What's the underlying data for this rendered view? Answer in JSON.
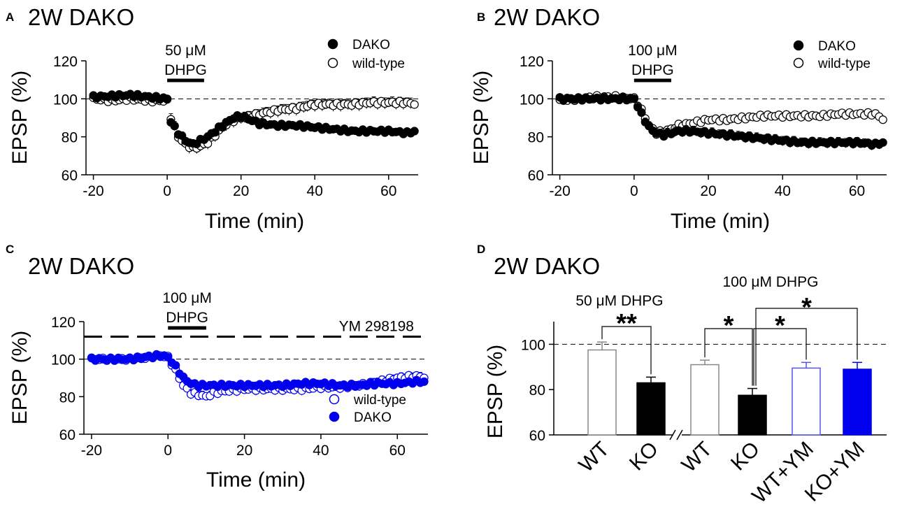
{
  "figure": {
    "panels": [
      {
        "label": "A",
        "title": "2W DAKO"
      },
      {
        "label": "B",
        "title": "2W DAKO"
      },
      {
        "label": "C",
        "title": "2W DAKO"
      },
      {
        "label": "D",
        "title": "2W DAKO"
      }
    ]
  },
  "colors": {
    "black": "#000000",
    "blue": "#0000ee",
    "white": "#ffffff"
  },
  "chart_data": [
    {
      "panel": "A",
      "type": "scatter",
      "title": "2W DAKO",
      "xlabel": "Time (min)",
      "ylabel": "EPSP (%)",
      "xlim": [
        -22,
        68
      ],
      "ylim": [
        60,
        120
      ],
      "xticks": [
        "-20",
        "0",
        "20",
        "40",
        "60"
      ],
      "yticks": [
        "60",
        "80",
        "100",
        "120"
      ],
      "drug": {
        "line1": "50 μM",
        "line2": "DHPG",
        "start": 0,
        "end": 10
      },
      "baseline": 100,
      "legend": [
        {
          "name": "DAKO",
          "marker": "filled"
        },
        {
          "name": "wild-type",
          "marker": "open"
        }
      ],
      "series": [
        {
          "name": "DAKO",
          "marker": "filled",
          "color": "#000000",
          "points": [
            [
              -20,
              101
            ],
            [
              -10,
              102
            ],
            [
              0,
              100
            ],
            [
              1,
              88
            ],
            [
              3,
              82
            ],
            [
              5,
              78
            ],
            [
              7,
              76
            ],
            [
              9,
              78
            ],
            [
              11,
              80
            ],
            [
              13,
              83
            ],
            [
              15,
              86
            ],
            [
              18,
              90
            ],
            [
              20,
              91
            ],
            [
              25,
              87
            ],
            [
              30,
              86
            ],
            [
              35,
              86
            ],
            [
              40,
              85
            ],
            [
              45,
              84
            ],
            [
              50,
              83
            ],
            [
              55,
              83
            ],
            [
              60,
              83
            ],
            [
              65,
              82
            ],
            [
              67,
              83
            ]
          ],
          "err": 2
        },
        {
          "name": "wild-type",
          "marker": "open",
          "color": "#000000",
          "points": [
            [
              -20,
              100
            ],
            [
              -15,
              99
            ],
            [
              -10,
              100
            ],
            [
              -5,
              99
            ],
            [
              0,
              99
            ],
            [
              1,
              90
            ],
            [
              3,
              80
            ],
            [
              5,
              76
            ],
            [
              7,
              74
            ],
            [
              9,
              75
            ],
            [
              11,
              77
            ],
            [
              13,
              81
            ],
            [
              15,
              85
            ],
            [
              17,
              88
            ],
            [
              20,
              90
            ],
            [
              23,
              91
            ],
            [
              25,
              92
            ],
            [
              30,
              94
            ],
            [
              35,
              95
            ],
            [
              40,
              97
            ],
            [
              45,
              97
            ],
            [
              50,
              97
            ],
            [
              55,
              98
            ],
            [
              60,
              98
            ],
            [
              65,
              98
            ],
            [
              67,
              97
            ]
          ],
          "err": 3
        }
      ]
    },
    {
      "panel": "B",
      "type": "scatter",
      "title": "2W DAKO",
      "xlabel": "Time (min)",
      "ylabel": "EPSP (%)",
      "xlim": [
        -22,
        68
      ],
      "ylim": [
        60,
        120
      ],
      "xticks": [
        "-20",
        "0",
        "20",
        "40",
        "60"
      ],
      "yticks": [
        "60",
        "80",
        "100",
        "120"
      ],
      "drug": {
        "line1": "100 μM",
        "line2": "DHPG",
        "start": 0,
        "end": 10
      },
      "baseline": 100,
      "legend": [
        {
          "name": "DAKO",
          "marker": "filled"
        },
        {
          "name": "wild-type",
          "marker": "open"
        }
      ],
      "series": [
        {
          "name": "DAKO",
          "marker": "filled",
          "color": "#000000",
          "points": [
            [
              -20,
              100
            ],
            [
              -10,
              100
            ],
            [
              -2,
              100
            ],
            [
              0,
              100
            ],
            [
              2,
              92
            ],
            [
              4,
              85
            ],
            [
              6,
              82
            ],
            [
              8,
              81
            ],
            [
              10,
              82
            ],
            [
              12,
              83
            ],
            [
              15,
              83
            ],
            [
              20,
              82
            ],
            [
              25,
              81
            ],
            [
              30,
              80
            ],
            [
              35,
              79
            ],
            [
              40,
              78
            ],
            [
              45,
              77
            ],
            [
              50,
              77
            ],
            [
              55,
              77
            ],
            [
              60,
              77
            ],
            [
              65,
              76
            ],
            [
              67,
              77
            ]
          ],
          "err": 2.5
        },
        {
          "name": "wild-type",
          "marker": "open",
          "color": "#000000",
          "points": [
            [
              -20,
              99
            ],
            [
              -15,
              100
            ],
            [
              -10,
              101
            ],
            [
              -5,
              101
            ],
            [
              0,
              100
            ],
            [
              2,
              94
            ],
            [
              4,
              86
            ],
            [
              6,
              82
            ],
            [
              8,
              83
            ],
            [
              10,
              84
            ],
            [
              12,
              86
            ],
            [
              15,
              87
            ],
            [
              20,
              89
            ],
            [
              25,
              89
            ],
            [
              30,
              90
            ],
            [
              35,
              91
            ],
            [
              40,
              91
            ],
            [
              45,
              91
            ],
            [
              50,
              91
            ],
            [
              55,
              92
            ],
            [
              60,
              92
            ],
            [
              65,
              92
            ],
            [
              67,
              89
            ]
          ],
          "err": 2
        }
      ]
    },
    {
      "panel": "C",
      "type": "scatter",
      "title": "2W DAKO",
      "xlabel": "Time (min)",
      "ylabel": "EPSP (%)",
      "xlim": [
        -22,
        68
      ],
      "ylim": [
        60,
        120
      ],
      "xticks": [
        "-20",
        "0",
        "20",
        "40",
        "60"
      ],
      "yticks": [
        "60",
        "80",
        "100",
        "120"
      ],
      "drug": {
        "line1": "100 μM",
        "line2": "DHPG",
        "start": 0,
        "end": 10
      },
      "antagonist": {
        "label": "YM 298198",
        "level": 112
      },
      "baseline": 100,
      "legend": [
        {
          "name": "wild-type",
          "marker": "open"
        },
        {
          "name": "DAKO",
          "marker": "filled"
        }
      ],
      "series": [
        {
          "name": "DAKO",
          "marker": "filled",
          "color": "#0000ee",
          "points": [
            [
              -20,
              100
            ],
            [
              -10,
              100
            ],
            [
              -2,
              102
            ],
            [
              0,
              101
            ],
            [
              2,
              96
            ],
            [
              4,
              90
            ],
            [
              6,
              87
            ],
            [
              8,
              86
            ],
            [
              10,
              86
            ],
            [
              15,
              86
            ],
            [
              20,
              86
            ],
            [
              25,
              86
            ],
            [
              30,
              86
            ],
            [
              35,
              87
            ],
            [
              40,
              87
            ],
            [
              45,
              86
            ],
            [
              50,
              86
            ],
            [
              55,
              87
            ],
            [
              60,
              87
            ],
            [
              65,
              88
            ],
            [
              67,
              88
            ]
          ],
          "err": 2
        },
        {
          "name": "wild-type",
          "marker": "open",
          "color": "#0000ee",
          "points": [
            [
              -20,
              100
            ],
            [
              -15,
              100
            ],
            [
              -10,
              100
            ],
            [
              -5,
              101
            ],
            [
              -2,
              102
            ],
            [
              0,
              101
            ],
            [
              2,
              94
            ],
            [
              4,
              86
            ],
            [
              6,
              82
            ],
            [
              8,
              81
            ],
            [
              10,
              80
            ],
            [
              12,
              82
            ],
            [
              15,
              83
            ],
            [
              20,
              84
            ],
            [
              25,
              84
            ],
            [
              30,
              84
            ],
            [
              35,
              84
            ],
            [
              40,
              85
            ],
            [
              45,
              85
            ],
            [
              50,
              86
            ],
            [
              55,
              88
            ],
            [
              60,
              90
            ],
            [
              65,
              91
            ],
            [
              67,
              90
            ]
          ],
          "err": 2.5
        }
      ]
    },
    {
      "panel": "D",
      "type": "bar",
      "title": "2W DAKO",
      "ylabel": "EPSP (%)",
      "ylim": [
        60,
        110
      ],
      "yticks": [
        "60",
        "80",
        "100"
      ],
      "baseline": 100,
      "group_labels": [
        "50 μM DHPG",
        "100 μM DHPG"
      ],
      "categories": [
        "WT",
        "KO",
        "WT",
        "KO",
        "WT+YM",
        "KO+YM"
      ],
      "values": [
        97.5,
        83,
        91,
        77.5,
        89.5,
        89
      ],
      "errors": [
        3.5,
        2.5,
        2,
        3,
        2.5,
        3
      ],
      "styles": [
        "open-gray",
        "filled-black",
        "open-gray",
        "filled-black",
        "open-blue",
        "filled-blue"
      ],
      "significance": [
        {
          "from": 0,
          "to": 1,
          "label": "**"
        },
        {
          "from": 2,
          "to": 3,
          "label": "*"
        },
        {
          "from": 3,
          "to": 4,
          "label": "*"
        },
        {
          "from": 3,
          "to": 5,
          "label": "*"
        }
      ]
    }
  ]
}
